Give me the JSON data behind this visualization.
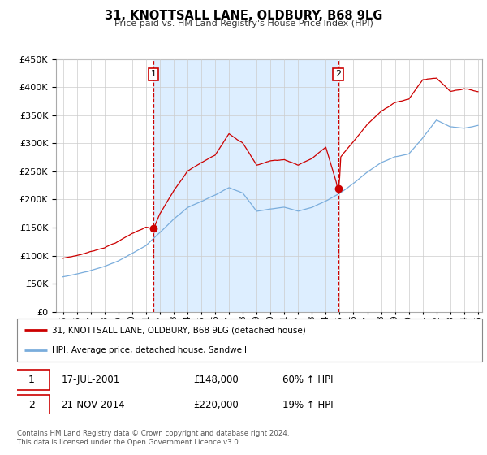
{
  "title": "31, KNOTTSALL LANE, OLDBURY, B68 9LG",
  "subtitle": "Price paid vs. HM Land Registry's House Price Index (HPI)",
  "legend_line1": "31, KNOTTSALL LANE, OLDBURY, B68 9LG (detached house)",
  "legend_line2": "HPI: Average price, detached house, Sandwell",
  "sale1_label": "1",
  "sale1_date": "17-JUL-2001",
  "sale1_price": "£148,000",
  "sale1_hpi": "60% ↑ HPI",
  "sale2_label": "2",
  "sale2_date": "21-NOV-2014",
  "sale2_price": "£220,000",
  "sale2_hpi": "19% ↑ HPI",
  "footer": "Contains HM Land Registry data © Crown copyright and database right 2024.\nThis data is licensed under the Open Government Licence v3.0.",
  "hpi_color": "#7aaddc",
  "price_color": "#cc0000",
  "vline_color": "#cc0000",
  "shade_color": "#ddeeff",
  "ylim_min": 0,
  "ylim_max": 450000,
  "yticks": [
    0,
    50000,
    100000,
    150000,
    200000,
    250000,
    300000,
    350000,
    400000,
    450000
  ],
  "sale1_year": 2001.54,
  "sale1_value": 148000,
  "sale2_year": 2014.9,
  "sale2_value": 220000,
  "xlim_min": 1994.5,
  "xlim_max": 2025.3
}
